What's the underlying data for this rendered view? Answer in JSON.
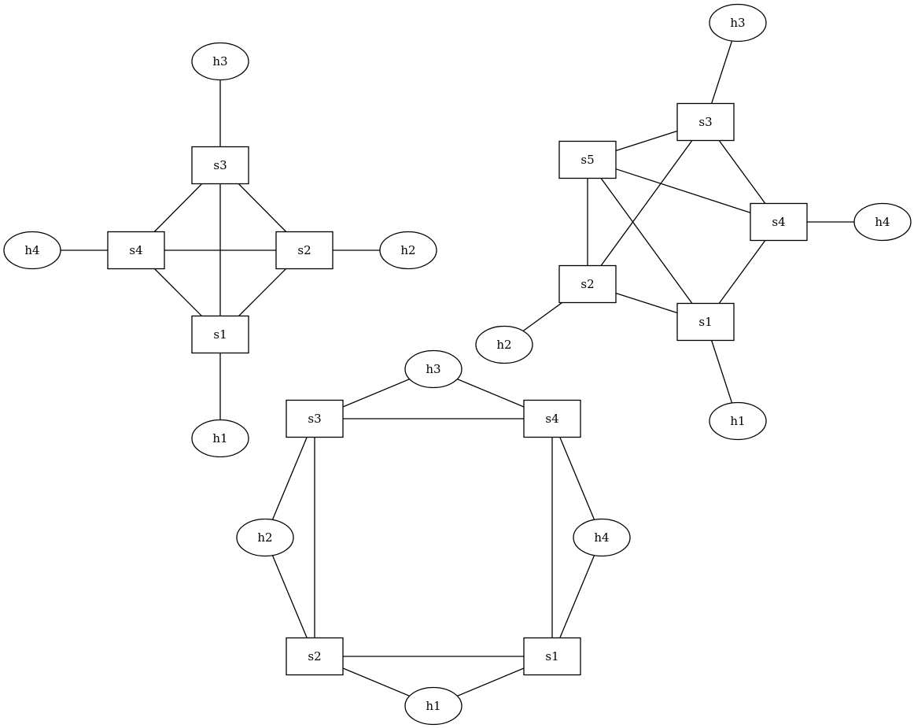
{
  "graphs": [
    {
      "id": "topo-a",
      "nodes": [
        {
          "id": "h3",
          "label": "h3",
          "kind": "host"
        },
        {
          "id": "s3",
          "label": "s3",
          "kind": "switch"
        },
        {
          "id": "h4",
          "label": "h4",
          "kind": "host"
        },
        {
          "id": "s4",
          "label": "s4",
          "kind": "switch"
        },
        {
          "id": "s2",
          "label": "s2",
          "kind": "switch"
        },
        {
          "id": "h2",
          "label": "h2",
          "kind": "host"
        },
        {
          "id": "s1",
          "label": "s1",
          "kind": "switch"
        },
        {
          "id": "h1",
          "label": "h1",
          "kind": "host"
        }
      ],
      "edges": [
        [
          "h3",
          "s3"
        ],
        [
          "s3",
          "s4"
        ],
        [
          "s3",
          "s2"
        ],
        [
          "s3",
          "s1"
        ],
        [
          "h4",
          "s4"
        ],
        [
          "s4",
          "s2"
        ],
        [
          "s4",
          "s1"
        ],
        [
          "s2",
          "h2"
        ],
        [
          "s2",
          "s1"
        ],
        [
          "s1",
          "h1"
        ]
      ]
    },
    {
      "id": "topo-b",
      "nodes": [
        {
          "id": "h3",
          "label": "h3",
          "kind": "host"
        },
        {
          "id": "s3",
          "label": "s3",
          "kind": "switch"
        },
        {
          "id": "s5",
          "label": "s5",
          "kind": "switch"
        },
        {
          "id": "s4",
          "label": "s4",
          "kind": "switch"
        },
        {
          "id": "h4",
          "label": "h4",
          "kind": "host"
        },
        {
          "id": "s2",
          "label": "s2",
          "kind": "switch"
        },
        {
          "id": "s1",
          "label": "s1",
          "kind": "switch"
        },
        {
          "id": "h2",
          "label": "h2",
          "kind": "host"
        },
        {
          "id": "h1",
          "label": "h1",
          "kind": "host"
        }
      ],
      "edges": [
        [
          "h3",
          "s3"
        ],
        [
          "s5",
          "s3"
        ],
        [
          "s3",
          "s4"
        ],
        [
          "s3",
          "s2"
        ],
        [
          "s5",
          "s4"
        ],
        [
          "s5",
          "s2"
        ],
        [
          "s5",
          "s1"
        ],
        [
          "s4",
          "h4"
        ],
        [
          "s4",
          "s1"
        ],
        [
          "s2",
          "s1"
        ],
        [
          "s2",
          "h2"
        ],
        [
          "s1",
          "h1"
        ]
      ]
    },
    {
      "id": "topo-c",
      "nodes": [
        {
          "id": "h3",
          "label": "h3",
          "kind": "host"
        },
        {
          "id": "s3",
          "label": "s3",
          "kind": "switch"
        },
        {
          "id": "s4",
          "label": "s4",
          "kind": "switch"
        },
        {
          "id": "h2",
          "label": "h2",
          "kind": "host"
        },
        {
          "id": "h4",
          "label": "h4",
          "kind": "host"
        },
        {
          "id": "s2",
          "label": "s2",
          "kind": "switch"
        },
        {
          "id": "s1",
          "label": "s1",
          "kind": "switch"
        },
        {
          "id": "h1",
          "label": "h1",
          "kind": "host"
        }
      ],
      "edges": [
        [
          "s3",
          "h3"
        ],
        [
          "h3",
          "s4"
        ],
        [
          "s3",
          "s4"
        ],
        [
          "s3",
          "h2"
        ],
        [
          "s3",
          "s2"
        ],
        [
          "h2",
          "s2"
        ],
        [
          "s4",
          "h4"
        ],
        [
          "s4",
          "s1"
        ],
        [
          "h4",
          "s1"
        ],
        [
          "s2",
          "s1"
        ],
        [
          "s2",
          "h1"
        ],
        [
          "s1",
          "h1"
        ]
      ]
    }
  ]
}
